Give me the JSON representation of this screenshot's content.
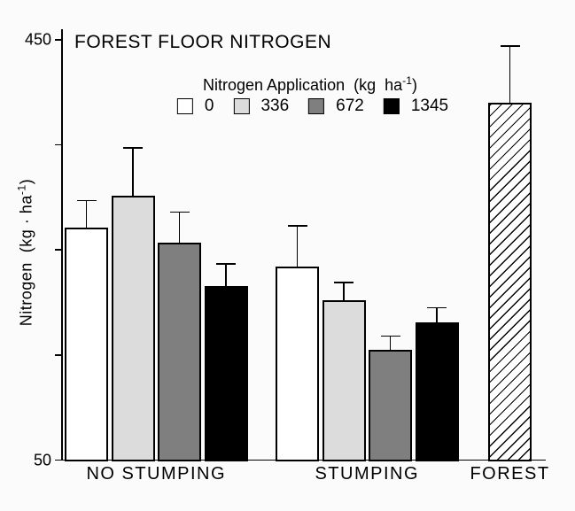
{
  "title": "FOREST FLOOR NITROGEN",
  "y_axis": {
    "label_prefix": "Nitrogen  (kg · ha",
    "label_sup": "-1",
    "label_suffix": ")"
  },
  "legend": {
    "title_prefix": "Nitrogen Application  (kg  ha",
    "title_sup": "-1",
    "title_suffix": ")"
  },
  "colors": {
    "background": "#fbfbfb",
    "axis": "#000000",
    "bar_0": "#ffffff",
    "bar_336": "#dcdcdc",
    "bar_672": "#7f7f7f",
    "bar_1345": "#000000",
    "forest_fill": "#ffffff",
    "forest_hatch": "#000000"
  },
  "chart_data": {
    "type": "bar",
    "title": "FOREST FLOOR NITROGEN",
    "xlabel": "",
    "ylabel": "Nitrogen (kg · ha-1)",
    "ylim": [
      50,
      450
    ],
    "yticks": [
      450,
      350,
      250,
      150,
      50
    ],
    "ytick_labels": [
      "450",
      "",
      "",
      "",
      "50"
    ],
    "grid": false,
    "legend": {
      "title": "Nitrogen Application (kg ha-1)",
      "position": "top",
      "entries": [
        {
          "label": "0",
          "fill": "#ffffff"
        },
        {
          "label": "336",
          "fill": "#dcdcdc"
        },
        {
          "label": "672",
          "fill": "#7f7f7f"
        },
        {
          "label": "1345",
          "fill": "#000000"
        }
      ]
    },
    "groups": [
      {
        "label": "NO STUMPING",
        "bars": [
          {
            "series": "0",
            "value": 271,
            "error_plus": 26
          },
          {
            "series": "336",
            "value": 302,
            "error_plus": 45
          },
          {
            "series": "672",
            "value": 257,
            "error_plus": 29
          },
          {
            "series": "1345",
            "value": 216,
            "error_plus": 21
          }
        ]
      },
      {
        "label": "STUMPING",
        "bars": [
          {
            "series": "0",
            "value": 234,
            "error_plus": 39
          },
          {
            "series": "336",
            "value": 202,
            "error_plus": 17
          },
          {
            "series": "672",
            "value": 155,
            "error_plus": 13
          },
          {
            "series": "1345",
            "value": 181,
            "error_plus": 14
          }
        ]
      },
      {
        "label": "FOREST",
        "bars": [
          {
            "series": "forest",
            "value": 390,
            "error_plus": 54,
            "hatch": true,
            "fill": "#ffffff"
          }
        ]
      }
    ]
  }
}
